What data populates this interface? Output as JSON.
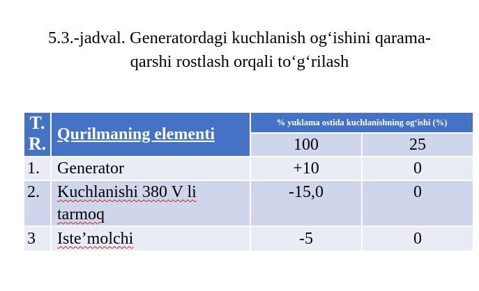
{
  "title": {
    "line1": "5.3.-jadval. Generatordagi kuchlanish og‘ishini qarama-",
    "line2": "qarshi rostlash orqali to‘g‘rilash"
  },
  "table": {
    "header": {
      "tr_line1": "T.",
      "tr_line2": "R.",
      "element": "Qurilmaning elementi",
      "deviation": "% yuklama ostida kuchlanishning og‘ishi (%)",
      "load_100": "100",
      "load_25": "25"
    },
    "rows": [
      {
        "num": "1.",
        "name": "Generator",
        "v100": "+10",
        "v25": "0"
      },
      {
        "num": "2.",
        "name_line1": "Kuchlanishi 380 V li",
        "name_line2": "tarmoq",
        "v100": "-15,0",
        "v25": "0"
      },
      {
        "num": "3",
        "name": "Iste’molchi",
        "v100": "-5",
        "v25": "0"
      }
    ]
  },
  "colors": {
    "header_blue": "#4472c4",
    "row_light": "#e9ebf5",
    "row_dark": "#cfd5ea"
  }
}
